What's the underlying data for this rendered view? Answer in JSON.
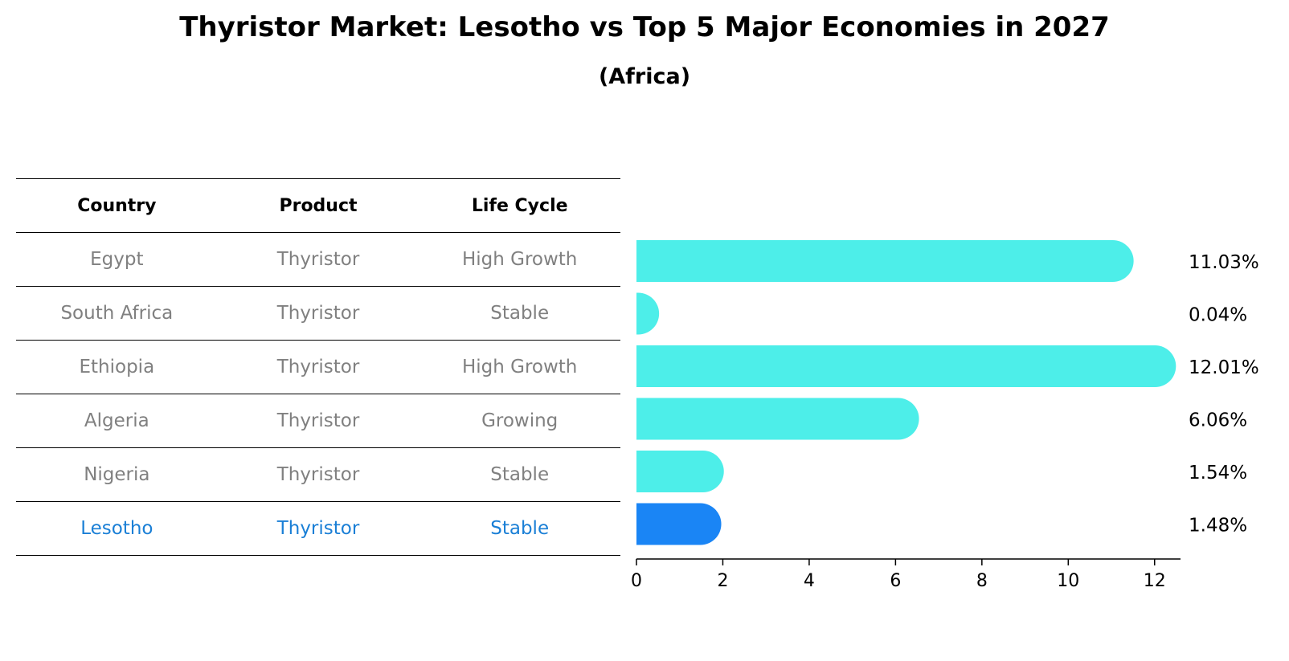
{
  "title": "Thyristor Market: Lesotho vs Top 5 Major Economies in 2027",
  "subtitle": "(Africa)",
  "table": {
    "headers": [
      "Country",
      "Product",
      "Life Cycle"
    ],
    "rows": [
      [
        "Egypt",
        "Thyristor",
        "High Growth"
      ],
      [
        "South Africa",
        "Thyristor",
        "Stable"
      ],
      [
        "Ethiopia",
        "Thyristor",
        "High Growth"
      ],
      [
        "Algeria",
        "Thyristor",
        "Growing"
      ],
      [
        "Nigeria",
        "Thyristor",
        "Stable"
      ],
      [
        "Lesotho",
        "Thyristor",
        "Stable"
      ]
    ]
  },
  "colors": {
    "bar": "#4deee9",
    "highlight_bar": "#1a85f5",
    "highlight_text": "#1a7fd6",
    "muted_text": "#808080"
  },
  "chart_data": {
    "type": "bar",
    "orientation": "horizontal",
    "categories": [
      "Egypt",
      "South Africa",
      "Ethiopia",
      "Algeria",
      "Nigeria",
      "Lesotho"
    ],
    "values": [
      11.03,
      0.04,
      12.01,
      6.06,
      1.54,
      1.48
    ],
    "value_labels": [
      "11.03%",
      "0.04%",
      "12.01%",
      "6.06%",
      "1.54%",
      "1.48%"
    ],
    "highlight": "Lesotho",
    "xlim": [
      0,
      12.6
    ],
    "xticks": [
      0,
      2,
      4,
      6,
      8,
      10,
      12
    ],
    "xlabel": "",
    "ylabel": "",
    "grid": false
  }
}
